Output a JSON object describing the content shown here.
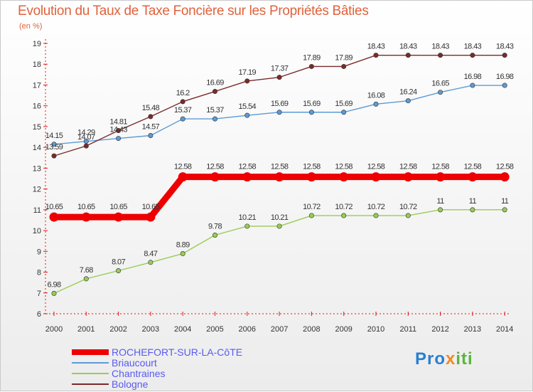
{
  "chart_data": {
    "type": "line",
    "title": "Evolution du Taux de Taxe Foncière sur les Propriétés Bâties",
    "subtitle": "(en %)",
    "xlabel": "",
    "ylabel": "(en %)",
    "ylim": [
      6,
      19
    ],
    "yticks": [
      "6",
      "7",
      "8",
      "9",
      "10",
      "11",
      "12",
      "13",
      "14",
      "15",
      "16",
      "17",
      "18",
      "19"
    ],
    "grid": false,
    "legend_position": "bottom-left",
    "x": [
      "2000",
      "2001",
      "2002",
      "2003",
      "2004",
      "2005",
      "2006",
      "2007",
      "2008",
      "2009",
      "2010",
      "2011",
      "2012",
      "2013",
      "2014"
    ],
    "series": [
      {
        "name": "ROCHEFORT-SUR-LA-CôTE",
        "color": "#ee0000",
        "thick": true,
        "values": [
          10.65,
          10.65,
          10.65,
          10.65,
          12.58,
          12.58,
          12.58,
          12.58,
          12.58,
          12.58,
          12.58,
          12.58,
          12.58,
          12.58,
          12.58
        ],
        "labels": [
          "10.65",
          "10.65",
          "10.65",
          "10.65",
          "12.58",
          "12.58",
          "12.58",
          "12.58",
          "12.58",
          "12.58",
          "12.58",
          "12.58",
          "12.58",
          "12.58",
          "12.58"
        ]
      },
      {
        "name": "Briaucourt",
        "color": "#5b9bd5",
        "thick": false,
        "values": [
          14.15,
          14.29,
          14.43,
          14.57,
          15.37,
          15.37,
          15.54,
          15.69,
          15.69,
          15.69,
          16.08,
          16.24,
          16.65,
          16.98,
          16.98
        ],
        "labels": [
          "14.15",
          "14.29",
          "14.43",
          "14.57",
          "15.37",
          "15.37",
          "15.54",
          "15.69",
          "15.69",
          "15.69",
          "16.08",
          "16.24",
          "16.65",
          "16.98",
          "16.98"
        ]
      },
      {
        "name": "Chantraines",
        "color": "#99cc55",
        "thick": false,
        "values": [
          6.98,
          7.68,
          8.07,
          8.47,
          8.89,
          9.78,
          10.21,
          10.21,
          10.72,
          10.72,
          10.72,
          10.72,
          11,
          11,
          11
        ],
        "labels": [
          "6.98",
          "7.68",
          "8.07",
          "8.47",
          "8.89",
          "9.78",
          "10.21",
          "10.21",
          "10.72",
          "10.72",
          "10.72",
          "10.72",
          "11",
          "11",
          "11"
        ]
      },
      {
        "name": "Bologne",
        "color": "#7b2a2a",
        "thick": false,
        "values": [
          13.59,
          14.07,
          14.81,
          15.48,
          16.2,
          16.69,
          17.19,
          17.37,
          17.89,
          17.89,
          18.43,
          18.43,
          18.43,
          18.43,
          18.43
        ],
        "labels": [
          "13.59",
          "14.07",
          "14.81",
          "15.48",
          "16.2",
          "16.69",
          "17.19",
          "17.37",
          "17.89",
          "17.89",
          "18.43",
          "18.43",
          "18.43",
          "18.43",
          "18.43"
        ]
      }
    ]
  },
  "logo": {
    "part1": "Pro",
    "part2": "x",
    "part3": "iti"
  }
}
